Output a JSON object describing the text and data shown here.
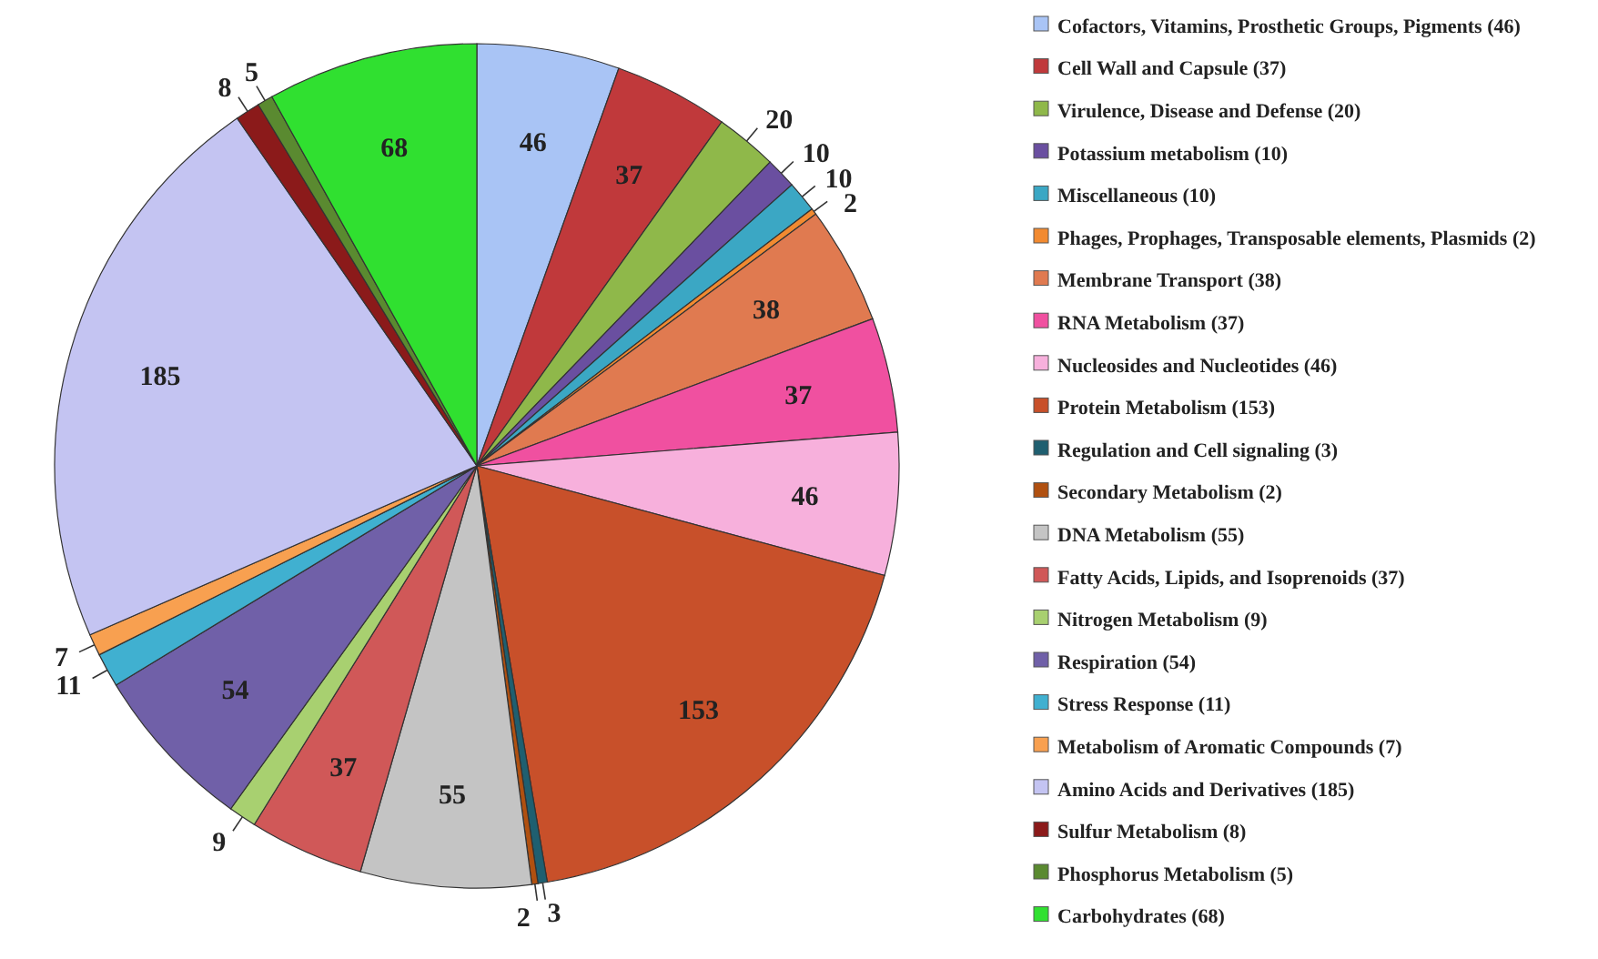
{
  "chart_data": {
    "type": "pie",
    "categories": [
      "Cofactors, Vitamins, Prosthetic Groups, Pigments (46)",
      "Cell Wall and Capsule (37)",
      "Virulence, Disease and Defense (20)",
      "Potassium metabolism (10)",
      "Miscellaneous (10)",
      "Phages, Prophages, Transposable elements, Plasmids (2)",
      "Membrane Transport (38)",
      "RNA Metabolism (37)",
      "Nucleosides and Nucleotides (46)",
      "Protein Metabolism (153)",
      "Regulation and Cell signaling (3)",
      "Secondary Metabolism (2)",
      "DNA Metabolism (55)",
      "Fatty Acids, Lipids, and Isoprenoids (37)",
      "Nitrogen Metabolism (9)",
      "Respiration (54)",
      "Stress Response (11)",
      "Metabolism of Aromatic Compounds (7)",
      "Amino Acids and Derivatives (185)",
      "Sulfur Metabolism (8)",
      "Phosphorus Metabolism (5)",
      "Carbohydrates (68)"
    ],
    "values": [
      46,
      37,
      20,
      10,
      10,
      2,
      38,
      37,
      46,
      153,
      3,
      2,
      55,
      37,
      9,
      54,
      11,
      7,
      185,
      8,
      5,
      68
    ],
    "colors": [
      "#a9c4f5",
      "#c0393b",
      "#8fb84a",
      "#6a4fa0",
      "#3ba7c4",
      "#f28a30",
      "#e07a50",
      "#f050a0",
      "#f7b0dc",
      "#c8502a",
      "#1f5f70",
      "#b05010",
      "#c4c4c4",
      "#d05858",
      "#a8d070",
      "#7060a8",
      "#40b0d0",
      "#f8a050",
      "#c4c4f2",
      "#8b1a1a",
      "#5a8a30",
      "#30e030"
    ],
    "data_labels": true,
    "legend": "right"
  }
}
